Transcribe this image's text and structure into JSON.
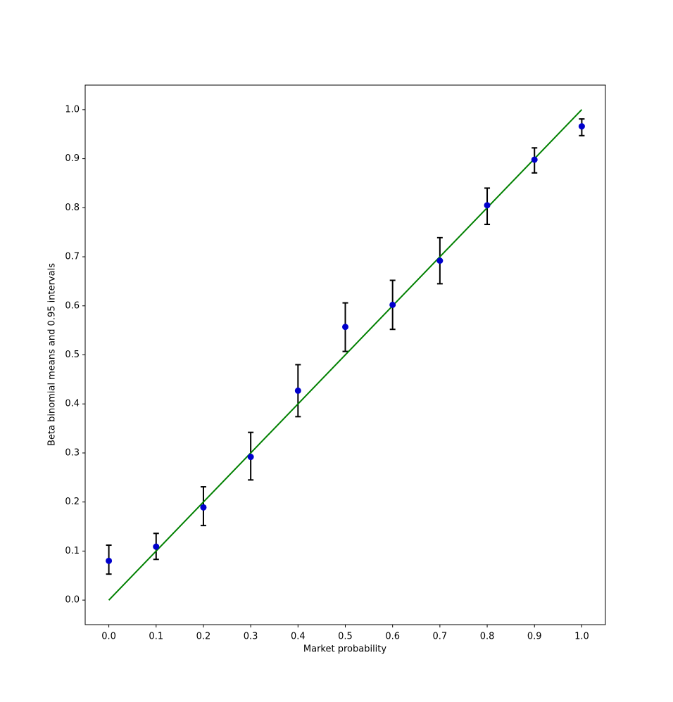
{
  "chart_data": {
    "type": "scatter",
    "xlabel": "Market probability",
    "ylabel": "Beta binomial means and 0.95 intervals",
    "x": [
      0.0,
      0.1,
      0.2,
      0.3,
      0.4,
      0.5,
      0.6,
      0.7,
      0.8,
      0.9,
      1.0
    ],
    "series": [
      {
        "color": "#0000cc",
        "values": [
          0.08,
          0.109,
          0.189,
          0.292,
          0.427,
          0.557,
          0.602,
          0.692,
          0.805,
          0.898,
          0.966
        ],
        "lower": [
          0.053,
          0.083,
          0.152,
          0.245,
          0.374,
          0.507,
          0.552,
          0.645,
          0.766,
          0.871,
          0.947
        ],
        "upper": [
          0.112,
          0.136,
          0.231,
          0.342,
          0.48,
          0.606,
          0.652,
          0.739,
          0.84,
          0.922,
          0.981
        ],
        "error_color": "#000000"
      }
    ],
    "reference_line": {
      "color": "#008000",
      "x": [
        0,
        1
      ],
      "values": [
        0,
        1
      ]
    },
    "xlim": [
      -0.05,
      1.05
    ],
    "ylim": [
      -0.05,
      1.05
    ],
    "xticks": [
      {
        "value": 0,
        "label": "0.0"
      },
      0.1,
      0.2,
      0.3,
      0.4,
      0.5,
      0.6,
      0.7,
      0.8,
      0.9,
      {
        "value": 1,
        "label": "1.0"
      }
    ],
    "yticks": [
      {
        "value": 0,
        "label": "0.0"
      },
      0.1,
      0.2,
      0.3,
      0.4,
      0.5,
      0.6,
      0.7,
      0.8,
      0.9,
      {
        "value": 1,
        "label": "1.0"
      }
    ],
    "grid": false
  }
}
